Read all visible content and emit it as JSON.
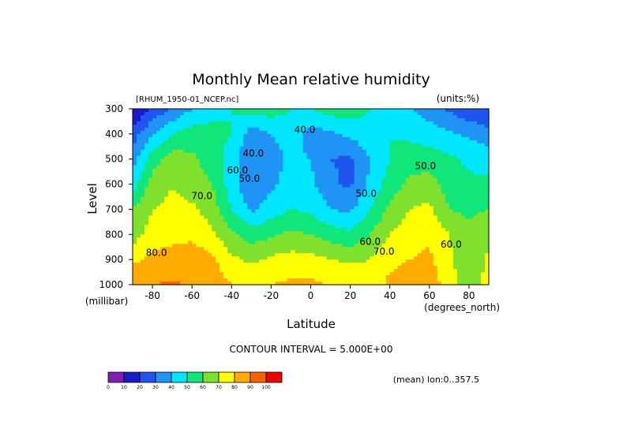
{
  "title": "Monthly Mean relative humidity",
  "dataset": "[RHUM_1950-01_NCEP.nc]",
  "units": "(units:%)",
  "contour_interval": "CONTOUR INTERVAL = 5.000E+00",
  "averaging": "(mean) lon:0..357.5",
  "chart_data": {
    "type": "heatmap",
    "title": "Monthly Mean relative humidity",
    "xlabel": "Latitude",
    "x_unit": "(degrees_north)",
    "ylabel": "Level",
    "y_unit": "(millibar)",
    "xlim": [
      -90,
      90
    ],
    "ylim": [
      1000,
      300
    ],
    "x_ticks": [
      -80,
      -60,
      -40,
      -20,
      0,
      20,
      40,
      60,
      80
    ],
    "x_tick_labels": [
      "-80",
      "-60",
      "-40",
      "-20",
      "0",
      "20",
      "40",
      "60",
      "80"
    ],
    "y_ticks": [
      300,
      400,
      500,
      600,
      700,
      800,
      900,
      1000
    ],
    "y_tick_labels": [
      "300",
      "400",
      "500",
      "600",
      "700",
      "800",
      "900",
      "1000"
    ],
    "latitudes": [
      -90,
      -80,
      -70,
      -60,
      -50,
      -40,
      -30,
      -20,
      -10,
      0,
      10,
      20,
      30,
      40,
      50,
      60,
      70,
      80,
      90
    ],
    "levels": [
      300,
      400,
      500,
      600,
      700,
      800,
      900,
      1000
    ],
    "values": [
      [
        8,
        22,
        30,
        40,
        45,
        50,
        55,
        55,
        50,
        50,
        55,
        55,
        50,
        45,
        40,
        35,
        28,
        22,
        20
      ],
      [
        25,
        40,
        50,
        55,
        55,
        50,
        35,
        40,
        45,
        35,
        38,
        42,
        48,
        50,
        48,
        45,
        42,
        38,
        34
      ],
      [
        35,
        55,
        65,
        62,
        55,
        45,
        30,
        35,
        42,
        40,
        30,
        28,
        40,
        50,
        55,
        55,
        52,
        48,
        46
      ],
      [
        45,
        65,
        70,
        65,
        60,
        45,
        30,
        38,
        45,
        42,
        32,
        28,
        42,
        55,
        62,
        65,
        55,
        52,
        52
      ],
      [
        60,
        70,
        72,
        72,
        65,
        50,
        38,
        45,
        50,
        48,
        40,
        38,
        50,
        62,
        70,
        72,
        60,
        58,
        60
      ],
      [
        65,
        75,
        76,
        78,
        72,
        62,
        55,
        58,
        62,
        60,
        55,
        52,
        60,
        70,
        76,
        78,
        70,
        62,
        68
      ],
      [
        78,
        82,
        85,
        86,
        82,
        72,
        68,
        72,
        74,
        73,
        70,
        68,
        70,
        78,
        80,
        82,
        72,
        60,
        72
      ],
      [
        88,
        90,
        91,
        89,
        87,
        80,
        78,
        80,
        82,
        82,
        80,
        78,
        76,
        82,
        84,
        85,
        76,
        64,
        75
      ]
    ],
    "color_scale": {
      "boundaries": [
        0,
        10,
        20,
        30,
        40,
        50,
        60,
        70,
        80,
        90,
        100
      ],
      "labels": [
        "0",
        "10",
        "20",
        "30",
        "40",
        "50",
        "60",
        "70",
        "80",
        "90",
        "100"
      ],
      "colors": [
        "#7a1fb0",
        "#1a1acc",
        "#1f55ee",
        "#1f94f5",
        "#00e6ff",
        "#10e67a",
        "#80e02e",
        "#ffff00",
        "#ffab00",
        "#ff6000",
        "#f00000"
      ]
    },
    "contour_labels": [
      {
        "text": "40.0",
        "lat": -3,
        "level": 395
      },
      {
        "text": "40.0",
        "lat": -29,
        "level": 490
      },
      {
        "text": "50.0",
        "lat": -31,
        "level": 590
      },
      {
        "text": "50.0",
        "lat": 28,
        "level": 650
      },
      {
        "text": "50.0",
        "lat": 58,
        "level": 540
      },
      {
        "text": "60.0",
        "lat": -37,
        "level": 558
      },
      {
        "text": "60.0",
        "lat": 30,
        "level": 842
      },
      {
        "text": "60.0",
        "lat": 71,
        "level": 852
      },
      {
        "text": "70.0",
        "lat": -55,
        "level": 660
      },
      {
        "text": "70.0",
        "lat": 37,
        "level": 880
      },
      {
        "text": "80.0",
        "lat": -78,
        "level": 885
      }
    ]
  }
}
